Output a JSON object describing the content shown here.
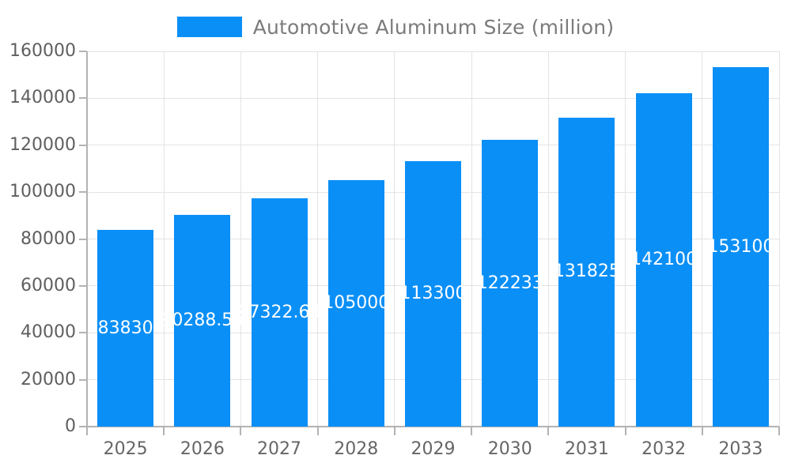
{
  "legend": {
    "label": "Automotive Aluminum Size (million)",
    "swatch_color": "#0a8ff7"
  },
  "chart_data": {
    "type": "bar",
    "title": "Automotive Aluminum Size (million)",
    "categories": [
      "2025",
      "2026",
      "2027",
      "2028",
      "2029",
      "2030",
      "2031",
      "2032",
      "2033"
    ],
    "values": [
      83830,
      90288.55,
      97322.68,
      105000,
      113300,
      122233,
      131825,
      142100,
      153100
    ],
    "value_labels": [
      "83830",
      "90288.55",
      "97322.68",
      "105000",
      "113300",
      "122233",
      "131825",
      "142100",
      "153100"
    ],
    "xlabel": "",
    "ylabel": "",
    "ylim": [
      0,
      160000
    ],
    "ytick_step": 20000,
    "ytick_labels": [
      "0",
      "20000",
      "40000",
      "60000",
      "80000",
      "100000",
      "120000",
      "140000",
      "160000"
    ],
    "grid": "horizontal and vertical light gray gridlines",
    "legend_position": "top-center",
    "bar_color": "#0a8ff7",
    "value_label_color": "#ffffff",
    "axis_text_color": "#5f5f5f",
    "grid_color": "#e3e3e3",
    "axis_line_color": "#b3b3b3"
  }
}
